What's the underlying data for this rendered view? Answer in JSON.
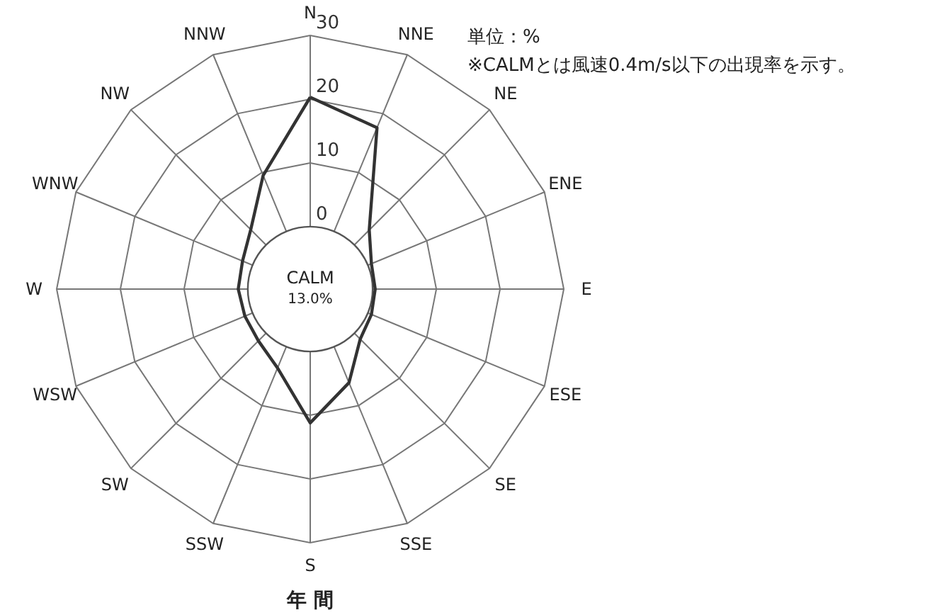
{
  "chart_data": {
    "type": "radar",
    "title": "年 間",
    "categories": [
      "N",
      "NNE",
      "NE",
      "ENE",
      "E",
      "ESE",
      "SE",
      "SSE",
      "S",
      "SSW",
      "SW",
      "WSW",
      "W",
      "WNW",
      "NW",
      "NNW"
    ],
    "series": [
      {
        "color": "#333333",
        "values": [
          20.3,
          17.6,
          3.3,
          0.6,
          0.4,
          0.6,
          1.3,
          6.1,
          11.2,
          3.6,
          1.7,
          1.3,
          1.5,
          1.7,
          3.4,
          9.5
        ]
      }
    ],
    "ylim": [
      -9.8,
      30
    ],
    "yticks": [
      0,
      10,
      20,
      30
    ],
    "grid": true,
    "annotations": [
      "CALM",
      "13.0%",
      "単位：%",
      "※CALMとは風速0.4m/s以下の出現率を示す。"
    ]
  }
}
